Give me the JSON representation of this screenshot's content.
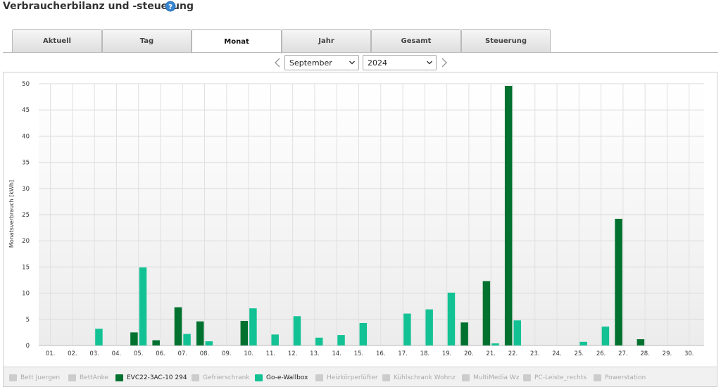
{
  "header": {
    "title": "Verbraucherbilanz und -steuerung",
    "help_icon": "question-circle-icon"
  },
  "tabs": [
    {
      "label": "Aktuell",
      "active": false
    },
    {
      "label": "Tag",
      "active": false
    },
    {
      "label": "Monat",
      "active": true
    },
    {
      "label": "Jahr",
      "active": false
    },
    {
      "label": "Gesamt",
      "active": false
    },
    {
      "label": "Steuerung",
      "active": false
    }
  ],
  "period": {
    "month": "September",
    "year": "2024",
    "prev_icon": "chevron-left-icon",
    "next_icon": "chevron-right-icon"
  },
  "chart_data": {
    "type": "bar",
    "ylabel": "Monatsverbrauch [kWh]",
    "ylim": [
      0,
      50
    ],
    "yticks": [
      0,
      5,
      10,
      15,
      20,
      25,
      30,
      35,
      40,
      45,
      50
    ],
    "categories": [
      "01.",
      "02.",
      "03.",
      "04.",
      "05.",
      "06.",
      "07.",
      "08.",
      "09.",
      "10.",
      "11.",
      "12.",
      "13.",
      "14.",
      "15.",
      "16.",
      "17.",
      "18.",
      "19.",
      "20.",
      "21.",
      "22.",
      "23.",
      "24.",
      "25.",
      "26.",
      "27.",
      "28.",
      "29.",
      "30."
    ],
    "grid": true,
    "legend_position": "bottom",
    "series": [
      {
        "name": "EVC22-3AC-10 294",
        "color": "#00712f",
        "values": [
          0,
          0,
          0,
          0,
          2.5,
          1,
          7.3,
          4.6,
          0,
          4.7,
          0,
          0,
          0,
          0,
          0,
          0,
          0,
          0,
          0,
          4.4,
          12.3,
          49.6,
          0,
          0,
          0,
          0,
          24.2,
          1.2,
          0,
          0
        ]
      },
      {
        "name": "Go-e-Wallbox",
        "color": "#13c294",
        "values": [
          0,
          0,
          3.2,
          0,
          14.9,
          0,
          2.2,
          0.8,
          0,
          7.1,
          2.1,
          5.6,
          1.5,
          2,
          4.3,
          0,
          6.1,
          6.9,
          10.1,
          0,
          0.4,
          4.8,
          0,
          0,
          0.7,
          3.6,
          0,
          0,
          0,
          0
        ]
      }
    ]
  },
  "legend": [
    {
      "label": "Bett Juergen",
      "active": false,
      "color": "#cccccc"
    },
    {
      "label": "BettAnke",
      "active": false,
      "color": "#cccccc"
    },
    {
      "label": "EVC22-3AC-10 294",
      "active": true,
      "color": "#00712f"
    },
    {
      "label": "Gefrierschrank",
      "active": false,
      "color": "#cccccc"
    },
    {
      "label": "Go-e-Wallbox",
      "active": true,
      "color": "#13c294"
    },
    {
      "label": "Heizkörperlüfter",
      "active": false,
      "color": "#cccccc"
    },
    {
      "label": "Kühlschrank Wohnz",
      "active": false,
      "color": "#cccccc"
    },
    {
      "label": "MultiMedia Wz",
      "active": false,
      "color": "#cccccc"
    },
    {
      "label": "PC-Leiste_rechts",
      "active": false,
      "color": "#cccccc"
    },
    {
      "label": "Powerstation",
      "active": false,
      "color": "#cccccc"
    }
  ]
}
